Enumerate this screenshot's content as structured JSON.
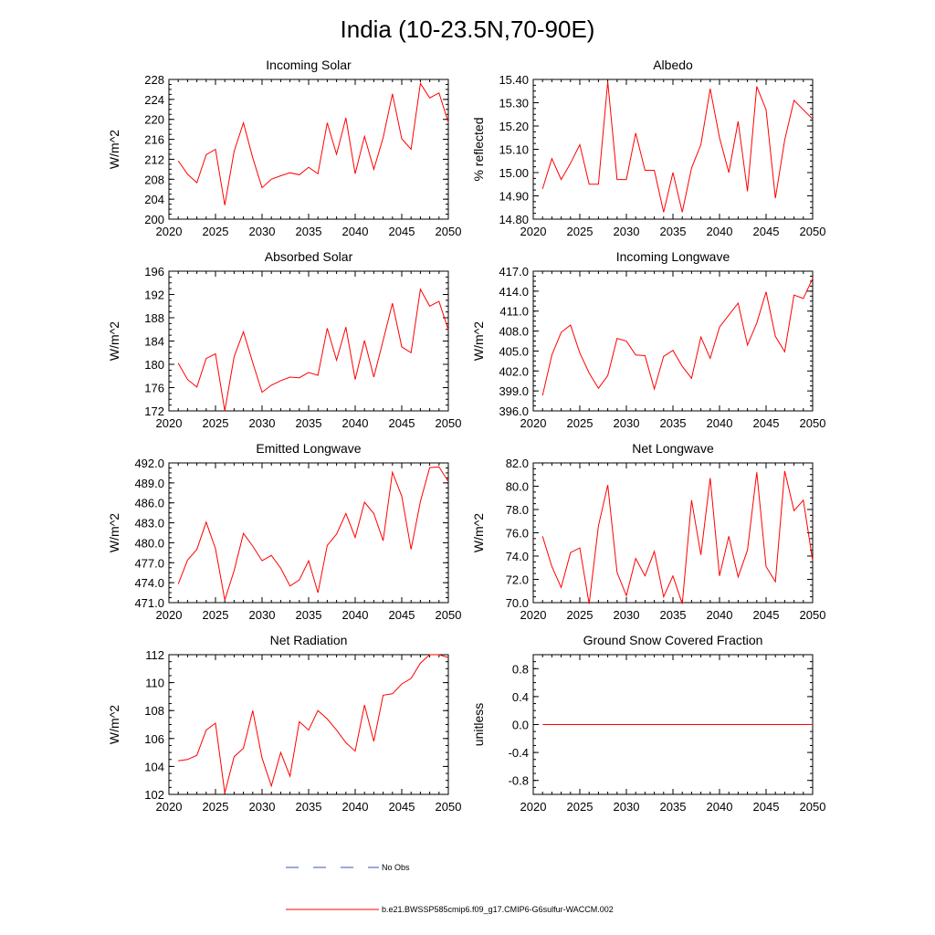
{
  "figure": {
    "title": "India (10-23.5N,70-90E)",
    "legend": [
      {
        "label": "No Obs",
        "style": "dashed",
        "color": "#3b4fc4"
      },
      {
        "label": "b.e21.BWSSP585cmip6.f09_g17.CMIP6-G6sulfur-WACCM.002",
        "style": "solid",
        "color": "#ff0000"
      }
    ]
  },
  "chart_data": [
    {
      "type": "line",
      "title": "Incoming Solar",
      "ylabel": "W/m^2",
      "xlim": [
        2020,
        2050
      ],
      "ylim": [
        200,
        228
      ],
      "xticks": [
        2020,
        2025,
        2030,
        2035,
        2040,
        2045,
        2050
      ],
      "yticks": [
        "200",
        "204",
        "208",
        "212",
        "216",
        "220",
        "224",
        "228"
      ],
      "x": [
        2021,
        2022,
        2023,
        2024,
        2025,
        2026,
        2027,
        2028,
        2029,
        2030,
        2031,
        2032,
        2033,
        2034,
        2035,
        2036,
        2037,
        2038,
        2039,
        2040,
        2041,
        2042,
        2043,
        2044,
        2045,
        2046,
        2047,
        2048,
        2049,
        2050
      ],
      "series": [
        {
          "color": "#ff0000",
          "values": [
            211.7,
            209.0,
            207.3,
            212.9,
            214.0,
            202.8,
            213.6,
            219.3,
            212.3,
            206.3,
            208.0,
            208.7,
            209.3,
            208.9,
            210.4,
            209.1,
            219.3,
            213.0,
            220.3,
            209.1,
            216.6,
            210.0,
            216.3,
            225.1,
            216.1,
            214.0,
            227.2,
            224.3,
            225.3,
            219.4
          ]
        }
      ]
    },
    {
      "type": "line",
      "title": "Albedo",
      "ylabel": "% reflected",
      "xlim": [
        2020,
        2050
      ],
      "ylim": [
        14.8,
        15.4
      ],
      "xticks": [
        2020,
        2025,
        2030,
        2035,
        2040,
        2045,
        2050
      ],
      "yticks": [
        "14.80",
        "14.90",
        "15.00",
        "15.10",
        "15.20",
        "15.30",
        "15.40"
      ],
      "x": [
        2021,
        2022,
        2023,
        2024,
        2025,
        2026,
        2027,
        2028,
        2029,
        2030,
        2031,
        2032,
        2033,
        2034,
        2035,
        2036,
        2037,
        2038,
        2039,
        2040,
        2041,
        2042,
        2043,
        2044,
        2045,
        2046,
        2047,
        2048,
        2049,
        2050
      ],
      "series": [
        {
          "color": "#ff0000",
          "values": [
            14.93,
            15.06,
            14.97,
            15.04,
            15.12,
            14.95,
            14.95,
            15.39,
            14.97,
            14.97,
            15.17,
            15.01,
            15.01,
            14.83,
            15.0,
            14.83,
            15.02,
            15.12,
            15.36,
            15.15,
            15.0,
            15.22,
            14.92,
            15.37,
            15.27,
            14.89,
            15.14,
            15.31,
            15.27,
            15.23
          ]
        }
      ]
    },
    {
      "type": "line",
      "title": "Absorbed Solar",
      "ylabel": "W/m^2",
      "xlim": [
        2020,
        2050
      ],
      "ylim": [
        172,
        196
      ],
      "xticks": [
        2020,
        2025,
        2030,
        2035,
        2040,
        2045,
        2050
      ],
      "yticks": [
        "172",
        "176",
        "180",
        "184",
        "188",
        "192",
        "196"
      ],
      "x": [
        2021,
        2022,
        2023,
        2024,
        2025,
        2026,
        2027,
        2028,
        2029,
        2030,
        2031,
        2032,
        2033,
        2034,
        2035,
        2036,
        2037,
        2038,
        2039,
        2040,
        2041,
        2042,
        2043,
        2044,
        2045,
        2046,
        2047,
        2048,
        2049,
        2050
      ],
      "series": [
        {
          "color": "#ff0000",
          "values": [
            180.2,
            177.4,
            176.1,
            181.0,
            181.8,
            172.0,
            181.3,
            185.6,
            180.3,
            175.2,
            176.4,
            177.2,
            177.8,
            177.7,
            178.6,
            178.1,
            186.2,
            180.7,
            186.4,
            177.4,
            184.1,
            177.8,
            184.1,
            190.5,
            183.0,
            182.0,
            192.9,
            190.0,
            190.8,
            185.9
          ]
        }
      ]
    },
    {
      "type": "line",
      "title": "Incoming Longwave",
      "ylabel": "W/m^2",
      "xlim": [
        2020,
        2050
      ],
      "ylim": [
        396,
        417
      ],
      "xticks": [
        2020,
        2025,
        2030,
        2035,
        2040,
        2045,
        2050
      ],
      "yticks": [
        "396.0",
        "399.0",
        "402.0",
        "405.0",
        "408.0",
        "411.0",
        "414.0",
        "417.0"
      ],
      "x": [
        2021,
        2022,
        2023,
        2024,
        2025,
        2026,
        2027,
        2028,
        2029,
        2030,
        2031,
        2032,
        2033,
        2034,
        2035,
        2036,
        2037,
        2038,
        2039,
        2040,
        2041,
        2042,
        2043,
        2044,
        2045,
        2046,
        2047,
        2048,
        2049,
        2050
      ],
      "series": [
        {
          "color": "#ff0000",
          "values": [
            398.3,
            404.4,
            407.8,
            408.9,
            404.7,
            401.7,
            399.4,
            401.3,
            406.9,
            406.5,
            404.4,
            404.3,
            399.3,
            404.2,
            405.1,
            402.7,
            400.9,
            407.1,
            403.9,
            408.6,
            410.4,
            412.2,
            405.9,
            409.2,
            413.9,
            407.2,
            404.9,
            413.4,
            412.9,
            415.9
          ]
        }
      ]
    },
    {
      "type": "line",
      "title": "Emitted Longwave",
      "ylabel": "W/m^2",
      "xlim": [
        2020,
        2050
      ],
      "ylim": [
        471,
        492
      ],
      "xticks": [
        2020,
        2025,
        2030,
        2035,
        2040,
        2045,
        2050
      ],
      "yticks": [
        "471.0",
        "474.0",
        "477.0",
        "480.0",
        "483.0",
        "486.0",
        "489.0",
        "492.0"
      ],
      "x": [
        2021,
        2022,
        2023,
        2024,
        2025,
        2026,
        2027,
        2028,
        2029,
        2030,
        2031,
        2032,
        2033,
        2034,
        2035,
        2036,
        2037,
        2038,
        2039,
        2040,
        2041,
        2042,
        2043,
        2044,
        2045,
        2046,
        2047,
        2048,
        2049,
        2050
      ],
      "series": [
        {
          "color": "#ff0000",
          "values": [
            473.8,
            477.4,
            479.0,
            483.1,
            479.1,
            471.4,
            475.8,
            481.4,
            479.5,
            477.3,
            478.1,
            476.2,
            473.5,
            474.4,
            477.3,
            472.5,
            479.6,
            481.3,
            484.4,
            480.8,
            486.1,
            484.4,
            480.3,
            490.6,
            487.0,
            479.0,
            486.2,
            491.3,
            491.4,
            489.2
          ]
        }
      ]
    },
    {
      "type": "line",
      "title": "Net Longwave",
      "ylabel": "W/m^2",
      "xlim": [
        2020,
        2050
      ],
      "ylim": [
        70,
        82
      ],
      "xticks": [
        2020,
        2025,
        2030,
        2035,
        2040,
        2045,
        2050
      ],
      "yticks": [
        "70.0",
        "72.0",
        "74.0",
        "76.0",
        "78.0",
        "80.0",
        "82.0"
      ],
      "x": [
        2021,
        2022,
        2023,
        2024,
        2025,
        2026,
        2027,
        2028,
        2029,
        2030,
        2031,
        2032,
        2033,
        2034,
        2035,
        2036,
        2037,
        2038,
        2039,
        2040,
        2041,
        2042,
        2043,
        2044,
        2045,
        2046,
        2047,
        2048,
        2049,
        2050
      ],
      "series": [
        {
          "color": "#ff0000",
          "values": [
            75.7,
            73.1,
            71.3,
            74.3,
            74.7,
            69.9,
            76.6,
            80.1,
            72.6,
            70.6,
            73.8,
            72.3,
            74.4,
            70.5,
            72.3,
            69.9,
            78.8,
            74.1,
            80.7,
            72.3,
            75.7,
            72.2,
            74.5,
            81.2,
            73.1,
            71.8,
            81.3,
            77.9,
            78.8,
            73.6
          ]
        }
      ]
    },
    {
      "type": "line",
      "title": "Net Radiation",
      "ylabel": "W/m^2",
      "xlim": [
        2020,
        2050
      ],
      "ylim": [
        102,
        112
      ],
      "xticks": [
        2020,
        2025,
        2030,
        2035,
        2040,
        2045,
        2050
      ],
      "yticks": [
        "102",
        "104",
        "106",
        "108",
        "110",
        "112"
      ],
      "x": [
        2021,
        2022,
        2023,
        2024,
        2025,
        2026,
        2027,
        2028,
        2029,
        2030,
        2031,
        2032,
        2033,
        2034,
        2035,
        2036,
        2037,
        2038,
        2039,
        2040,
        2041,
        2042,
        2043,
        2044,
        2045,
        2046,
        2047,
        2048,
        2049,
        2050
      ],
      "series": [
        {
          "color": "#ff0000",
          "values": [
            104.4,
            104.5,
            104.8,
            106.6,
            107.1,
            102.1,
            104.7,
            105.3,
            108.0,
            104.6,
            102.6,
            105.0,
            103.3,
            107.2,
            106.6,
            108.0,
            107.4,
            106.6,
            105.7,
            105.1,
            108.4,
            105.8,
            109.1,
            109.2,
            109.9,
            110.3,
            111.4,
            112.0,
            112.0,
            111.8
          ]
        }
      ]
    },
    {
      "type": "line",
      "title": "Ground Snow Covered Fraction",
      "ylabel": "unitless",
      "xlim": [
        2020,
        2050
      ],
      "ylim": [
        -1.0,
        1.0
      ],
      "xticks": [
        2020,
        2025,
        2030,
        2035,
        2040,
        2045,
        2050
      ],
      "yticks": [
        "-0.8",
        "-0.4",
        "0.0",
        "0.4",
        "0.8"
      ],
      "ytick_values": [
        -0.8,
        -0.4,
        0.0,
        0.4,
        0.8
      ],
      "x": [
        2021,
        2022,
        2023,
        2024,
        2025,
        2026,
        2027,
        2028,
        2029,
        2030,
        2031,
        2032,
        2033,
        2034,
        2035,
        2036,
        2037,
        2038,
        2039,
        2040,
        2041,
        2042,
        2043,
        2044,
        2045,
        2046,
        2047,
        2048,
        2049,
        2050
      ],
      "series": [
        {
          "color": "#ff0000",
          "values": [
            0,
            0,
            0,
            0,
            0,
            0,
            0,
            0,
            0,
            0,
            0,
            0,
            0,
            0,
            0,
            0,
            0,
            0,
            0,
            0,
            0,
            0,
            0,
            0,
            0,
            0,
            0,
            0,
            0,
            0
          ]
        }
      ]
    }
  ]
}
